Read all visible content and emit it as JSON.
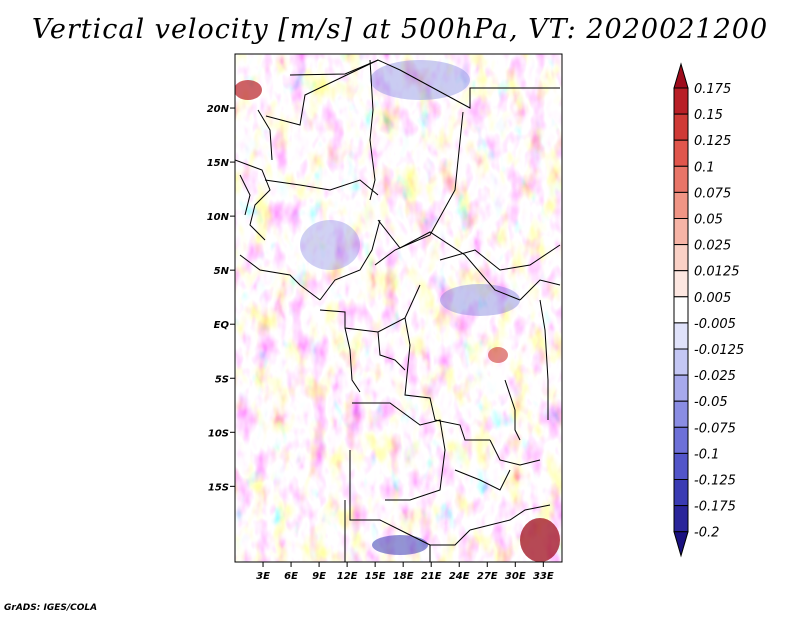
{
  "chart_data": {
    "type": "heatmap",
    "title": "Vertical velocity [m/s] at 500hPa, VT: 2020021200",
    "variable": "Vertical velocity",
    "units": "m/s",
    "level": "500hPa",
    "valid_time": "2020021200",
    "x_range": [
      0,
      35
    ],
    "y_range": [
      -22,
      25
    ],
    "xticks": [
      {
        "value": 3,
        "label": "3E"
      },
      {
        "value": 6,
        "label": "6E"
      },
      {
        "value": 9,
        "label": "9E"
      },
      {
        "value": 12,
        "label": "12E"
      },
      {
        "value": 15,
        "label": "15E"
      },
      {
        "value": 18,
        "label": "18E"
      },
      {
        "value": 21,
        "label": "21E"
      },
      {
        "value": 24,
        "label": "24E"
      },
      {
        "value": 27,
        "label": "27E"
      },
      {
        "value": 30,
        "label": "30E"
      },
      {
        "value": 33,
        "label": "33E"
      }
    ],
    "yticks": [
      {
        "value": 20,
        "label": "20N"
      },
      {
        "value": 15,
        "label": "15N"
      },
      {
        "value": 10,
        "label": "10N"
      },
      {
        "value": 5,
        "label": "5N"
      },
      {
        "value": 0,
        "label": "EQ"
      },
      {
        "value": -5,
        "label": "5S"
      },
      {
        "value": -10,
        "label": "10S"
      },
      {
        "value": -15,
        "label": "15S"
      }
    ],
    "colorbar": {
      "labels": [
        "0.175",
        "0.15",
        "0.125",
        "0.1",
        "0.075",
        "0.05",
        "0.025",
        "0.0125",
        "0.005",
        "-0.005",
        "-0.0125",
        "-0.025",
        "-0.05",
        "-0.075",
        "-0.1",
        "-0.125",
        "-0.175",
        "-0.2"
      ],
      "colors": [
        "#9e0c1c",
        "#b81f26",
        "#cf3a36",
        "#e0564c",
        "#e87568",
        "#f09585",
        "#f6b4a6",
        "#fad1c6",
        "#fde7e1",
        "#ffffff",
        "#e0e2fa",
        "#c4c7f4",
        "#a7a9ec",
        "#8a8de3",
        "#6d70d8",
        "#5255c9",
        "#3a3bb3",
        "#2a259a",
        "#1a1180"
      ]
    }
  },
  "credit": "GrADS: IGES/COLA"
}
